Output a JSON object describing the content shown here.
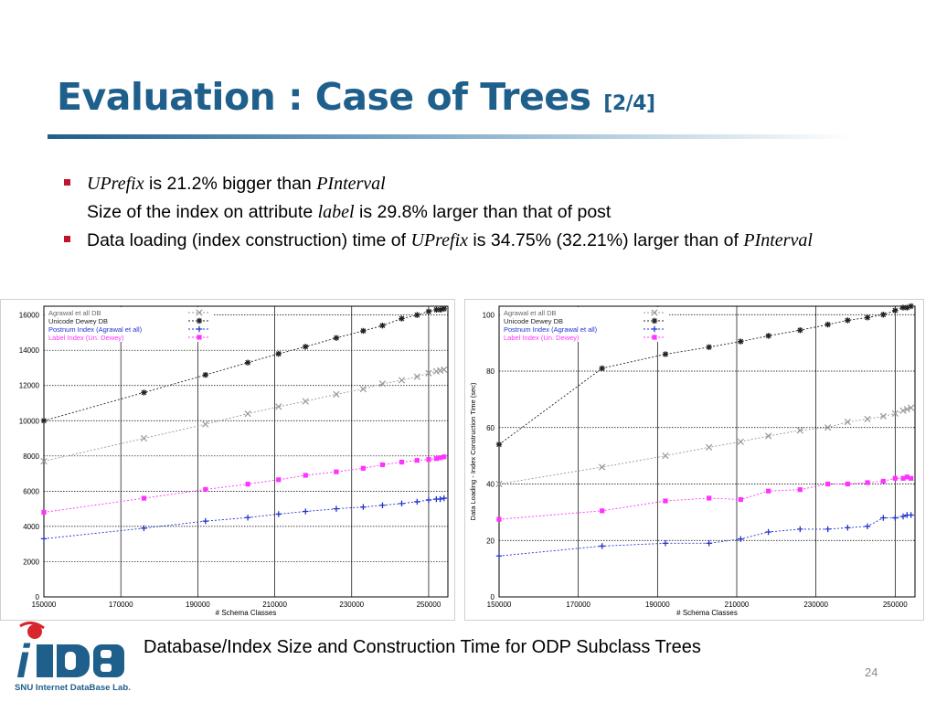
{
  "slide": {
    "title_main": "Evaluation : Case of  Trees",
    "title_sub": "[2/4]",
    "bullets": [
      {
        "l1_it": "UPrefix",
        "l1_rest": " is 21.2% bigger than ",
        "l1_it2": "PInterval",
        "l2_a": "Size of the index on attribute ",
        "l2_it": "label",
        "l2_b": " is 29.8% larger than that of post"
      },
      {
        "a": "Data loading (index construction) time of ",
        "it": "UPrefix",
        "b": " is 34.75% (32.21%) larger than of ",
        "it2": "PInterval"
      }
    ],
    "caption": "Database/Index Size and Construction Time for ODP Subclass Trees",
    "page_number": "24",
    "logo": {
      "text": "iDB",
      "subtitle": "SNU Internet DataBase Lab."
    }
  },
  "chart_data": [
    {
      "type": "line",
      "xlabel": "# Schema Classes",
      "ylabel": "",
      "xlim": [
        150000,
        255000
      ],
      "ylim": [
        0,
        16500
      ],
      "xticks": [
        150000,
        170000,
        190000,
        210000,
        230000,
        250000
      ],
      "yticks": [
        0,
        2000,
        4000,
        6000,
        8000,
        10000,
        12000,
        14000,
        16000
      ],
      "grid": true,
      "legend_position": "top-left",
      "series": [
        {
          "name": "Agrawal et all DB",
          "color": "#999999",
          "marker": "x",
          "x": [
            150000,
            176000,
            192000,
            203000,
            211000,
            218000,
            226000,
            233000,
            238000,
            243000,
            247000,
            250000,
            252000,
            253000,
            254000
          ],
          "y": [
            7700,
            9000,
            9800,
            10400,
            10800,
            11100,
            11500,
            11800,
            12100,
            12300,
            12500,
            12700,
            12800,
            12850,
            12900
          ]
        },
        {
          "name": "Unicode Dewey DB",
          "color": "#222222",
          "marker": "*",
          "x": [
            150000,
            176000,
            192000,
            203000,
            211000,
            218000,
            226000,
            233000,
            238000,
            243000,
            247000,
            250000,
            252000,
            253000,
            254000
          ],
          "y": [
            10000,
            11600,
            12600,
            13300,
            13800,
            14200,
            14700,
            15100,
            15400,
            15800,
            16000,
            16200,
            16300,
            16300,
            16350
          ]
        },
        {
          "name": "Postnum Index (Agrawal et all)",
          "color": "#2233cc",
          "marker": "+",
          "x": [
            150000,
            176000,
            192000,
            203000,
            211000,
            218000,
            226000,
            233000,
            238000,
            243000,
            247000,
            250000,
            252000,
            253000,
            254000
          ],
          "y": [
            3300,
            3900,
            4300,
            4500,
            4700,
            4850,
            5000,
            5100,
            5200,
            5300,
            5400,
            5500,
            5550,
            5550,
            5600
          ]
        },
        {
          "name": "Label Index (Un. Dewey)",
          "color": "#ff33ff",
          "marker": "s",
          "x": [
            150000,
            176000,
            192000,
            203000,
            211000,
            218000,
            226000,
            233000,
            238000,
            243000,
            247000,
            250000,
            252000,
            253000,
            254000
          ],
          "y": [
            4800,
            5600,
            6100,
            6400,
            6650,
            6900,
            7100,
            7300,
            7500,
            7650,
            7750,
            7800,
            7850,
            7900,
            7950
          ]
        }
      ]
    },
    {
      "type": "line",
      "xlabel": "# Schema Classes",
      "ylabel": "Data Loading - Index Construction Time (sec)",
      "xlim": [
        150000,
        255000
      ],
      "ylim": [
        0,
        103
      ],
      "xticks": [
        150000,
        170000,
        190000,
        210000,
        230000,
        250000
      ],
      "yticks": [
        0,
        20,
        40,
        60,
        80,
        100
      ],
      "grid": true,
      "legend_position": "top-left",
      "series": [
        {
          "name": "Agrawal et all DB",
          "color": "#999999",
          "marker": "x",
          "x": [
            150000,
            176000,
            192000,
            203000,
            211000,
            218000,
            226000,
            233000,
            238000,
            243000,
            247000,
            250000,
            252000,
            253000,
            254000
          ],
          "y": [
            40,
            46,
            50,
            53,
            55,
            57,
            59,
            60,
            62,
            63,
            64,
            65,
            66,
            66.5,
            67
          ]
        },
        {
          "name": "Unicode Dewey DB",
          "color": "#222222",
          "marker": "*",
          "x": [
            150000,
            176000,
            192000,
            203000,
            211000,
            218000,
            226000,
            233000,
            238000,
            243000,
            247000,
            250000,
            252000,
            253000,
            254000
          ],
          "y": [
            54,
            81,
            86,
            88.5,
            90.5,
            92.5,
            94.5,
            96.5,
            98,
            99,
            100,
            101.5,
            102.5,
            102.5,
            103
          ]
        },
        {
          "name": "Postnum Index (Agrawal et all)",
          "color": "#2233cc",
          "marker": "+",
          "x": [
            150000,
            176000,
            192000,
            203000,
            211000,
            218000,
            226000,
            233000,
            238000,
            243000,
            247000,
            250000,
            252000,
            253000,
            254000
          ],
          "y": [
            14.5,
            18,
            19,
            19,
            20.5,
            23,
            24,
            24,
            24.5,
            25,
            28,
            28,
            28.5,
            29,
            29
          ]
        },
        {
          "name": "Label Index (Un. Dewey)",
          "color": "#ff33ff",
          "marker": "s",
          "x": [
            150000,
            176000,
            192000,
            203000,
            211000,
            218000,
            226000,
            233000,
            238000,
            243000,
            247000,
            250000,
            252000,
            253000,
            254000
          ],
          "y": [
            27.5,
            30.5,
            34,
            35,
            34.5,
            37.5,
            38,
            40,
            40,
            40.5,
            41,
            42,
            42,
            42.5,
            42
          ]
        }
      ]
    }
  ]
}
